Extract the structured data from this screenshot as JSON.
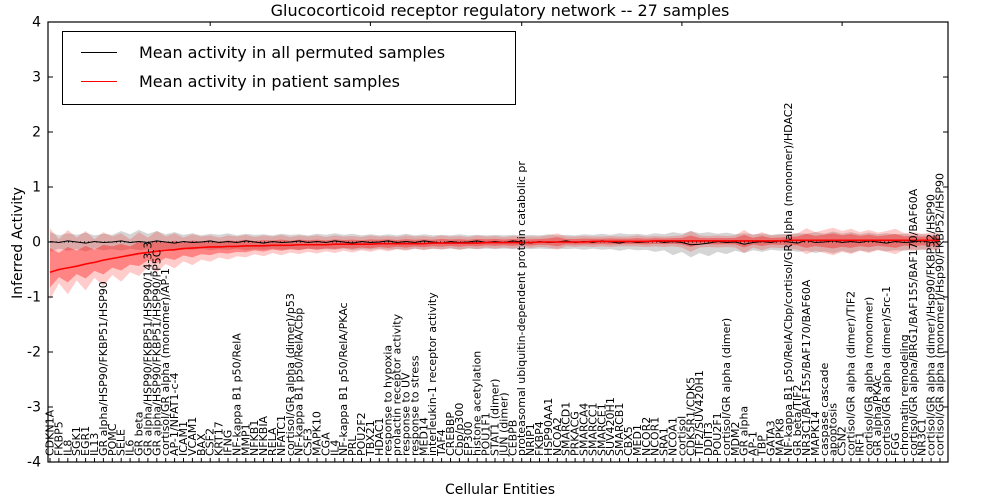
{
  "title": "Glucocorticoid receptor regulatory network -- 27 samples",
  "legend": {
    "permuted_label": "Mean activity in all permuted samples",
    "patient_label": "Mean activity in patient samples"
  },
  "axes": {
    "ylabel": "Inferred Activity",
    "xlabel": "Cellular Entities",
    "yticks": [
      "4",
      "3",
      "2",
      "1",
      "0",
      "-1",
      "-2",
      "-3",
      "-4"
    ]
  },
  "colors": {
    "permuted_line": "#000000",
    "patient_line": "#ff0000",
    "patient_band": "#ff0000",
    "permuted_band": "#888888"
  },
  "chart_data": {
    "type": "line",
    "title": "Glucocorticoid receptor regulatory network -- 27 samples",
    "xlabel": "Cellular Entities",
    "ylabel": "Inferred Activity",
    "ylim": [
      -4,
      4
    ],
    "grid": false,
    "legend_position": "upper left",
    "categories": [
      "CDKN1A",
      "FKBP5",
      "IL8",
      "SGK1",
      "EGR1",
      "IL13",
      "GR alpha/HSP90/FKBP51/HSP90",
      "POMC",
      "SELE",
      "IL6",
      "GR beta",
      "GR alpha/HSP90/FKBP51/HSP90/14-3-3",
      "GR alpha/HSP90/FKBP51/HSP90/PP5C",
      "cortisol/GR alpha (monomer)/AP-1",
      "AP-1/NFAT1-c-4",
      "ICAM1",
      "VCAM1",
      "BAX",
      "CSF2",
      "KRT17",
      "IFNG",
      "NF-kappa B1 p50/RelA",
      "MMP1",
      "NFKB1",
      "NFKBIA",
      "RELA",
      "NFATC1",
      "cortisol/GR alpha (dimer)/p53",
      "NF-kappa B1 p50/RelA/Cbp",
      "CSF3",
      "MAPK10",
      "CGA",
      "IL4",
      "NF-kappa B1 p50/RelA/PKAc",
      "PRL",
      "POU2F2",
      "TBX21",
      "HDAC1",
      "response to hypoxia",
      "prolactin receptor activity",
      "response to UV",
      "response to stress",
      "MED14",
      "interleukin-1 receptor activity",
      "TAF4",
      "CREBBP",
      "Cbp/p300",
      "EP300",
      "histone acetylation",
      "POU1F1",
      "STAT1 (dimer)",
      "JUN (dimer)",
      "CEBPB",
      "proteasomal ubiquitin-dependent protein catabolic pr",
      "NRIP1",
      "FKBP4",
      "HSP90AA1",
      "NCOA2",
      "SMARCD1",
      "PRKACG",
      "SMARCA4",
      "SMARCC1",
      "SMARCE1",
      "SUV420H1",
      "SMARCB1",
      "CBX5",
      "MED1",
      "NCOR2",
      "NCOR1",
      "SRA1",
      "NCOA1",
      "cortisol",
      "CDK5R1/CDK5",
      "TIF2/SUV420H1",
      "DDIT3",
      "POU2F1",
      "cortisol/GR alpha (dimer)",
      "MDM2",
      "GR alpha",
      "AP-1",
      "TBP",
      "GATA3",
      "MAPK8",
      "NF-kappa B1 p50/RelA/Cbp/cortisol/GR alpha (monomer)/HDAC2",
      "GR beta/TIF2",
      "NR3C1/BAF155/BAF170/BAF60A",
      "MAPK14",
      "caspase cascade",
      "apoptosis",
      "CSN2",
      "cortisol/GR alpha (dimer)/TIF2",
      "IRF1",
      "cortisol/GR alpha (monomer)",
      "GR alpha/PKAc",
      "cortisol/GR alpha (dimer)/Src-1",
      "FGG",
      "chromatin remodeling",
      "cortisol/GR alpha/BRG1/BAF155/BAF170/BAF60A",
      "NR3C1",
      "cortisol/GR alpha (dimer)/Hsp90/FKBP52/HSP90",
      "cortisol/GR alpha (monomer)/Hsp90/FKBP52/HSP90"
    ],
    "series": [
      {
        "name": "Mean activity in all permuted samples",
        "color": "#000000",
        "values": [
          0.01,
          -0.01,
          0.02,
          0.0,
          -0.02,
          0.01,
          -0.01,
          0.0,
          0.02,
          -0.01,
          0.01,
          -0.01,
          0.02,
          0.0,
          -0.02,
          0.01,
          -0.01,
          0.0,
          0.02,
          -0.01,
          0.01,
          -0.01,
          0.02,
          0.0,
          -0.02,
          0.01,
          -0.01,
          0.0,
          0.02,
          -0.01,
          0.01,
          -0.01,
          0.02,
          0.0,
          -0.02,
          0.01,
          -0.01,
          0.0,
          0.02,
          -0.01,
          0.01,
          -0.01,
          0.02,
          0.0,
          -0.02,
          0.01,
          -0.01,
          0.0,
          0.02,
          -0.01,
          0.01,
          -0.01,
          0.02,
          0.0,
          -0.02,
          0.01,
          -0.01,
          0.0,
          0.02,
          -0.01,
          0.01,
          -0.01,
          0.02,
          0.0,
          -0.02,
          0.01,
          -0.01,
          0.0,
          0.02,
          -0.01,
          0.01,
          -0.01,
          -0.05,
          -0.04,
          -0.02,
          0.01,
          -0.01,
          0.0,
          -0.04,
          -0.01,
          0.01,
          -0.01,
          0.02,
          0.0,
          -0.02,
          0.03,
          -0.01,
          0.0,
          0.02,
          -0.01,
          0.01,
          -0.01,
          0.02,
          0.0,
          -0.02,
          0.01,
          -0.01,
          0.0,
          0.02,
          -0.01,
          0.01
        ]
      },
      {
        "name": "Mean activity in patient samples",
        "color": "#ff0000",
        "values": [
          -0.55,
          -0.5,
          -0.47,
          -0.44,
          -0.4,
          -0.37,
          -0.33,
          -0.3,
          -0.27,
          -0.24,
          -0.21,
          -0.19,
          -0.17,
          -0.15,
          -0.14,
          -0.12,
          -0.11,
          -0.1,
          -0.09,
          -0.09,
          -0.08,
          -0.08,
          -0.07,
          -0.07,
          -0.07,
          -0.06,
          -0.06,
          -0.06,
          -0.05,
          -0.05,
          -0.05,
          -0.05,
          -0.04,
          -0.04,
          -0.04,
          -0.04,
          -0.04,
          -0.03,
          -0.03,
          -0.03,
          -0.03,
          -0.03,
          -0.03,
          -0.02,
          -0.02,
          -0.02,
          -0.02,
          -0.02,
          -0.02,
          -0.01,
          -0.01,
          -0.01,
          -0.01,
          -0.01,
          -0.01,
          0.0,
          0.0,
          0.0,
          0.0,
          0.0,
          0.0,
          0.01,
          0.01,
          0.01,
          0.01,
          0.01,
          0.01,
          0.01,
          0.02,
          0.02,
          0.02,
          0.02,
          0.02,
          0.02,
          0.02,
          0.02,
          0.02,
          0.02,
          0.02,
          0.02,
          0.02,
          0.02,
          0.02,
          0.03,
          0.03,
          0.03,
          0.03,
          0.03,
          0.03,
          0.03,
          0.03,
          0.03,
          0.03,
          0.03,
          0.03,
          0.03,
          0.03,
          0.03,
          0.03,
          0.03,
          0.03
        ]
      }
    ],
    "bands": {
      "patient_low": [
        -1.05,
        -0.75,
        -0.95,
        -0.7,
        -0.88,
        -0.65,
        -0.8,
        -0.6,
        -0.72,
        -0.55,
        -0.62,
        -0.45,
        -0.55,
        -0.4,
        -0.48,
        -0.35,
        -0.42,
        -0.32,
        -0.36,
        -0.28,
        -0.32,
        -0.26,
        -0.28,
        -0.22,
        -0.26,
        -0.2,
        -0.24,
        -0.19,
        -0.22,
        -0.18,
        -0.21,
        -0.17,
        -0.2,
        -0.16,
        -0.19,
        -0.15,
        -0.18,
        -0.14,
        -0.17,
        -0.13,
        -0.16,
        -0.12,
        -0.15,
        -0.12,
        -0.14,
        -0.11,
        -0.14,
        -0.11,
        -0.13,
        -0.1,
        -0.12,
        -0.1,
        -0.12,
        -0.09,
        -0.11,
        -0.09,
        -0.1,
        -0.14,
        -0.08,
        -0.09,
        -0.08,
        -0.09,
        -0.08,
        -0.09,
        -0.08,
        -0.08,
        -0.08,
        -0.09,
        -0.08,
        -0.09,
        -0.08,
        -0.1,
        -0.18,
        -0.1,
        -0.09,
        -0.1,
        -0.09,
        -0.1,
        -0.2,
        -0.1,
        -0.15,
        -0.1,
        -0.11,
        -0.12,
        -0.14,
        -0.22,
        -0.16,
        -0.2,
        -0.24,
        -0.18,
        -0.22,
        -0.16,
        -0.2,
        -0.15,
        -0.18,
        -0.22,
        -0.14,
        -0.16,
        -0.13,
        -0.15,
        -0.14
      ],
      "patient_high": [
        0.25,
        0.05,
        0.22,
        0.08,
        0.2,
        0.05,
        0.18,
        0.1,
        0.16,
        0.05,
        0.18,
        0.08,
        0.2,
        0.1,
        0.16,
        0.08,
        0.14,
        0.1,
        0.12,
        0.08,
        0.12,
        0.1,
        0.13,
        0.09,
        0.12,
        0.1,
        0.13,
        0.09,
        0.12,
        0.1,
        0.12,
        0.09,
        0.12,
        0.1,
        0.11,
        0.09,
        0.12,
        0.1,
        0.11,
        0.09,
        0.12,
        0.1,
        0.11,
        0.09,
        0.12,
        0.1,
        0.11,
        0.09,
        0.12,
        0.1,
        0.11,
        0.09,
        0.11,
        0.1,
        0.1,
        0.1,
        0.12,
        0.16,
        0.1,
        0.1,
        0.11,
        0.1,
        0.1,
        0.11,
        0.1,
        0.1,
        0.12,
        0.1,
        0.11,
        0.1,
        0.11,
        0.12,
        0.2,
        0.12,
        0.11,
        0.12,
        0.11,
        0.12,
        0.22,
        0.12,
        0.18,
        0.12,
        0.13,
        0.14,
        0.16,
        0.25,
        0.18,
        0.22,
        0.26,
        0.2,
        0.24,
        0.18,
        0.22,
        0.17,
        0.2,
        0.24,
        0.16,
        0.18,
        0.15,
        0.17,
        0.16
      ],
      "permuted_low": [
        -0.18,
        -0.12,
        -0.16,
        -0.13,
        -0.17,
        -0.12,
        -0.15,
        -0.13,
        -0.16,
        -0.12,
        -0.15,
        -0.13,
        -0.16,
        -0.12,
        -0.15,
        -0.13,
        -0.14,
        -0.12,
        -0.15,
        -0.13,
        -0.14,
        -0.12,
        -0.15,
        -0.13,
        -0.14,
        -0.12,
        -0.14,
        -0.13,
        -0.15,
        -0.12,
        -0.14,
        -0.13,
        -0.14,
        -0.12,
        -0.15,
        -0.13,
        -0.14,
        -0.12,
        -0.14,
        -0.13,
        -0.14,
        -0.12,
        -0.14,
        -0.12,
        -0.13,
        -0.12,
        -0.14,
        -0.12,
        -0.13,
        -0.12,
        -0.13,
        -0.12,
        -0.13,
        -0.12,
        -0.13,
        -0.12,
        -0.13,
        -0.12,
        -0.13,
        -0.12,
        -0.14,
        -0.12,
        -0.14,
        -0.13,
        -0.16,
        -0.13,
        -0.15,
        -0.14,
        -0.18,
        -0.15,
        -0.24,
        -0.18,
        -0.28,
        -0.2,
        -0.26,
        -0.18,
        -0.22,
        -0.16,
        -0.2,
        -0.15,
        -0.18,
        -0.14,
        -0.16,
        -0.15,
        -0.18,
        -0.16,
        -0.2,
        -0.17,
        -0.21,
        -0.16,
        -0.2,
        -0.15,
        -0.18,
        -0.14,
        -0.17,
        -0.15,
        -0.16,
        -0.14,
        -0.15,
        -0.13,
        -0.14
      ],
      "permuted_high": [
        0.18,
        0.12,
        0.16,
        0.13,
        0.17,
        0.12,
        0.15,
        0.13,
        0.2,
        0.14,
        0.22,
        0.15,
        0.2,
        0.14,
        0.18,
        0.13,
        0.16,
        0.12,
        0.15,
        0.13,
        0.16,
        0.12,
        0.15,
        0.13,
        0.14,
        0.12,
        0.15,
        0.13,
        0.14,
        0.12,
        0.15,
        0.13,
        0.16,
        0.13,
        0.15,
        0.12,
        0.14,
        0.12,
        0.14,
        0.12,
        0.15,
        0.12,
        0.14,
        0.12,
        0.13,
        0.12,
        0.14,
        0.12,
        0.13,
        0.12,
        0.13,
        0.12,
        0.13,
        0.12,
        0.13,
        0.12,
        0.14,
        0.12,
        0.13,
        0.12,
        0.14,
        0.13,
        0.15,
        0.13,
        0.16,
        0.14,
        0.15,
        0.13,
        0.16,
        0.14,
        0.18,
        0.15,
        0.2,
        0.16,
        0.18,
        0.15,
        0.17,
        0.14,
        0.16,
        0.14,
        0.15,
        0.13,
        0.15,
        0.14,
        0.16,
        0.15,
        0.18,
        0.15,
        0.19,
        0.15,
        0.18,
        0.14,
        0.17,
        0.14,
        0.16,
        0.14,
        0.15,
        0.13,
        0.14,
        0.13,
        0.14
      ]
    }
  }
}
